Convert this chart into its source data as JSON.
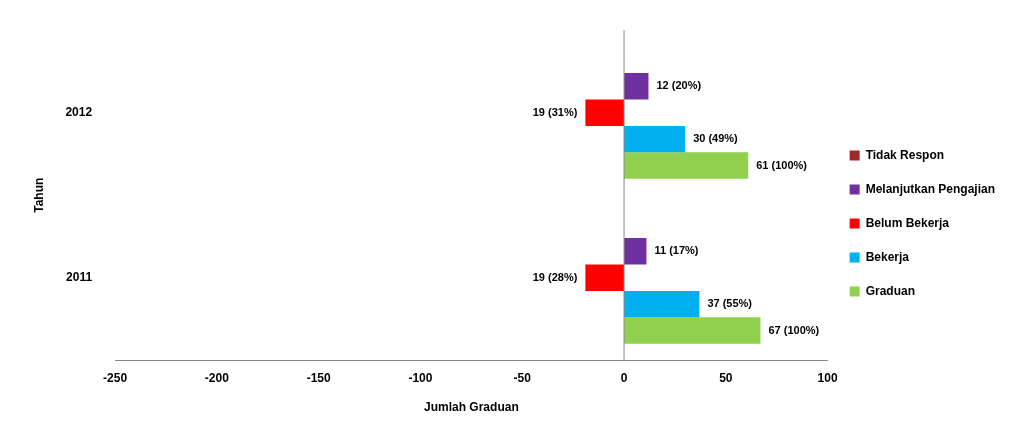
{
  "chart_data": {
    "type": "bar",
    "orientation": "horizontal",
    "categories": [
      "2012",
      "2011"
    ],
    "xlabel": "Jumlah Graduan",
    "ylabel": "Tahun",
    "xlim": [
      -250,
      100
    ],
    "xticks": [
      -250,
      -200,
      -150,
      -100,
      -50,
      0,
      50,
      100
    ],
    "grid": false,
    "legend": "right",
    "ref_lines": [
      {
        "axis": "x",
        "value": 0,
        "color": "#888888"
      }
    ],
    "series": [
      {
        "name": "Tidak Respon",
        "color": "#a0282a",
        "values": [
          null,
          null
        ]
      },
      {
        "name": "Melanjutkan Pengajian",
        "color": "#7030a0",
        "values": [
          12,
          11
        ],
        "value_labels": [
          "12 (20%)",
          "11 (17%)"
        ]
      },
      {
        "name": "Belum Bekerja",
        "color": "#ff0000",
        "values": [
          19,
          19
        ],
        "base": [
          -19,
          -19
        ],
        "value_labels": [
          "19 (31%)",
          "19 (28%)"
        ]
      },
      {
        "name": "Bekerja",
        "color": "#00b0f0",
        "values": [
          30,
          37
        ],
        "value_labels": [
          "30 (49%)",
          "37 (55%)"
        ]
      },
      {
        "name": "Graduan",
        "color": "#92d050",
        "values": [
          61,
          67
        ],
        "value_labels": [
          "61 (100%)",
          "67 (100%)"
        ]
      }
    ]
  }
}
